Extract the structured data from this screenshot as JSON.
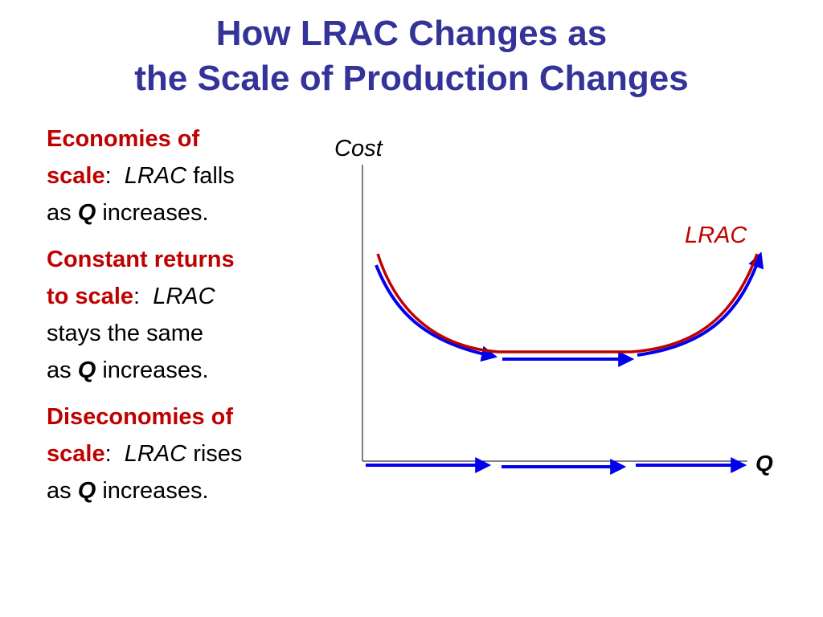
{
  "title": {
    "line1": "How LRAC Changes as",
    "line2": "the Scale of Production Changes"
  },
  "items": [
    {
      "term_line1": "Economies of",
      "term_line2": "scale",
      "colon": ":",
      "curve_name": "LRAC",
      "verb": "falls",
      "pre": "as",
      "q": "Q",
      "post": "increases."
    },
    {
      "term_line1": "Constant returns",
      "term_line2": "to scale",
      "colon": ":",
      "curve_name": "LRAC",
      "verb": "stays the same",
      "pre": "as",
      "q": "Q",
      "post": "increases."
    },
    {
      "term_line1": "Diseconomies of",
      "term_line2": "scale",
      "colon": ":",
      "curve_name": "LRAC",
      "verb": "rises",
      "pre": "as",
      "q": "Q",
      "post": "increases."
    }
  ],
  "diagram": {
    "y_axis_label": "Cost",
    "x_axis_label": "Q",
    "curve_label": "LRAC",
    "colors": {
      "title": "#333399",
      "term": "#c00000",
      "curve": "#c00000",
      "arrow": "#0000ee",
      "axis": "#000000"
    }
  }
}
